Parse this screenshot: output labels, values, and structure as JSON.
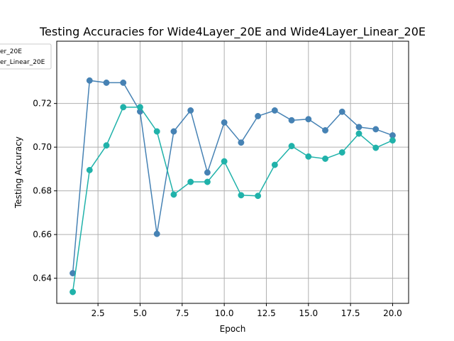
{
  "chart_data": {
    "type": "line",
    "title": "Testing Accuracies for Wide4Layer_20E and Wide4Layer_Linear_20E",
    "xlabel": "Epoch",
    "ylabel": "Testing Accuracy",
    "xlim": [
      0.05,
      20.95
    ],
    "ylim": [
      0.6285,
      0.7485
    ],
    "x_ticks": [
      2.5,
      5.0,
      7.5,
      10.0,
      12.5,
      15.0,
      17.5,
      20.0
    ],
    "x_tick_labels": [
      "2.5",
      "5.0",
      "7.5",
      "10.0",
      "12.5",
      "15.0",
      "17.5",
      "20.0"
    ],
    "y_ticks": [
      0.64,
      0.66,
      0.68,
      0.7,
      0.72
    ],
    "y_tick_labels": [
      "0.64",
      "0.66",
      "0.68",
      "0.70",
      "0.72"
    ],
    "grid": true,
    "legend_position": "upper-left",
    "legend_entries_visible": [
      "er_20E",
      "er_Linear_20E"
    ],
    "x": [
      1,
      2,
      3,
      4,
      5,
      6,
      7,
      8,
      9,
      10,
      11,
      12,
      13,
      14,
      15,
      16,
      17,
      18,
      19,
      20
    ],
    "series": [
      {
        "name": "Wide4Layer_20E",
        "color": "#4682b4",
        "values": [
          0.6423,
          0.7305,
          0.7295,
          0.7295,
          0.7163,
          0.6603,
          0.7072,
          0.7168,
          0.6884,
          0.7113,
          0.7021,
          0.7142,
          0.7168,
          0.7123,
          0.7128,
          0.7077,
          0.7162,
          0.7092,
          0.7082,
          0.7054
        ]
      },
      {
        "name": "Wide4Layer_Linear_20E",
        "color": "#20b2aa",
        "values": [
          0.6337,
          0.6895,
          0.7008,
          0.7183,
          0.7183,
          0.7072,
          0.6783,
          0.6841,
          0.6841,
          0.6935,
          0.678,
          0.6777,
          0.6919,
          0.7005,
          0.6957,
          0.6947,
          0.6976,
          0.7062,
          0.6997,
          0.7031
        ]
      }
    ]
  }
}
